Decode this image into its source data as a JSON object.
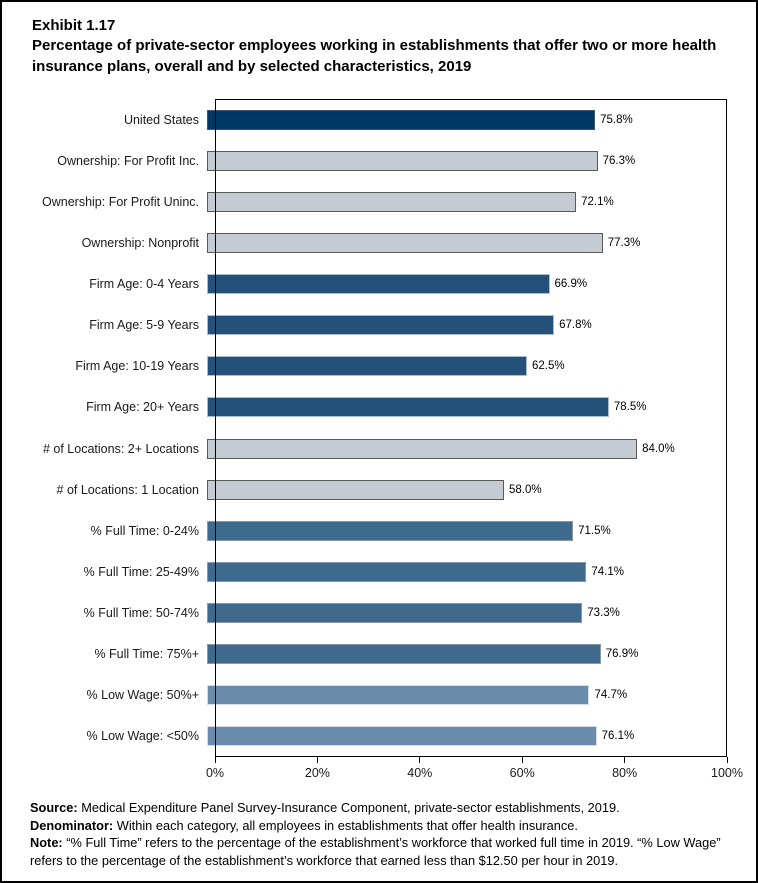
{
  "title": {
    "exhibit": "Exhibit 1.17",
    "text": "Percentage of private-sector employees working in establishments that offer two or more health insurance plans, overall and by selected characteristics, 2019"
  },
  "chart_data": {
    "type": "bar",
    "orientation": "horizontal",
    "title": "Percentage of private-sector employees working in establishments that offer two or more health insurance plans, overall and by selected characteristics, 2019",
    "xlabel": "",
    "ylabel": "",
    "xlim": [
      0,
      100
    ],
    "grid": false,
    "legend": "none",
    "x_ticks": [
      {
        "pct": 0,
        "label": "0%"
      },
      {
        "pct": 20,
        "label": "20%"
      },
      {
        "pct": 40,
        "label": "40%"
      },
      {
        "pct": 60,
        "label": "60%"
      },
      {
        "pct": 80,
        "label": "80%"
      },
      {
        "pct": 100,
        "label": "100%"
      }
    ],
    "categories": [
      "United States",
      "Ownership: For Profit Inc.",
      "Ownership: For Profit Uninc.",
      "Ownership: Nonprofit",
      "Firm Age: 0-4 Years",
      "Firm Age: 5-9 Years",
      "Firm Age: 10-19 Years",
      "Firm Age: 20+ Years",
      "# of Locations: 2+ Locations",
      "# of Locations: 1 Location",
      "% Full Time: 0-24%",
      "% Full Time: 25-49%",
      "% Full Time: 50-74%",
      "% Full Time: 75%+",
      "% Low Wage: 50%+",
      "% Low Wage: <50%"
    ],
    "values": [
      75.8,
      76.3,
      72.1,
      77.3,
      66.9,
      67.8,
      62.5,
      78.5,
      84.0,
      58.0,
      71.5,
      74.1,
      73.3,
      76.9,
      74.7,
      76.1
    ],
    "value_labels": [
      "75.8%",
      "76.3%",
      "72.1%",
      "77.3%",
      "66.9%",
      "67.8%",
      "62.5%",
      "78.5%",
      "84.0%",
      "58.0%",
      "71.5%",
      "74.1%",
      "73.3%",
      "76.9%",
      "74.7%",
      "76.1%"
    ],
    "bar_colors": [
      "#003865",
      "#C4CBD3",
      "#C4CBD3",
      "#C4CBD3",
      "#235179",
      "#235179",
      "#235179",
      "#235179",
      "#C4CBD3",
      "#C4CBD3",
      "#3E6A8E",
      "#3E6A8E",
      "#3E6A8E",
      "#3E6A8E",
      "#6A8BA9",
      "#6A8BA9"
    ],
    "bar_border_colors": [
      "#44546A",
      "#595959",
      "#595959",
      "#595959",
      "#A9BCD0",
      "#A9BCD0",
      "#A9BCD0",
      "#A9BCD0",
      "#595959",
      "#595959",
      "#8A98A5",
      "#8A98A5",
      "#8A98A5",
      "#8A98A5",
      "#D3DCE5",
      "#D3DCE5"
    ]
  },
  "footnotes": [
    {
      "label": "Source:",
      "text": " Medical Expenditure Panel Survey-Insurance Component, private-sector establishments, 2019."
    },
    {
      "label": "Denominator:",
      "text": " Within each category, all employees in establishments that offer health insurance."
    },
    {
      "label": "Note:",
      "text": " “% Full Time” refers to the percentage of the establishment’s workforce that worked full time in 2019. “% Low Wage” refers to the percentage of the establishment’s workforce that earned less than $12.50 per hour in 2019."
    }
  ]
}
